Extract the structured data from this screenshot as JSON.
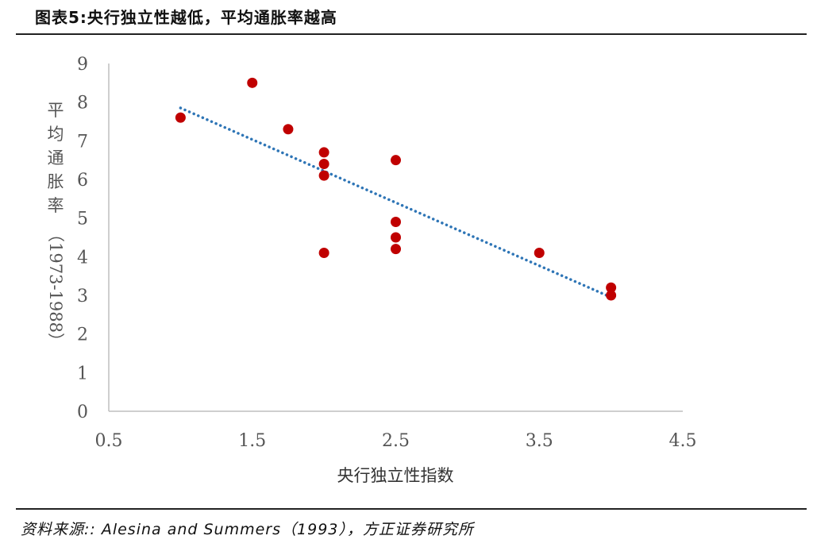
{
  "figure": {
    "title": "图表5:央行独立性越低，平均通胀率越高",
    "source": "资料来源:: Alesina and Summers（1993），方正证券研究所"
  },
  "colors": {
    "point": "#C00000",
    "trendline": "#2E75B6",
    "axis": "#BFBFBF",
    "rule": "#222222"
  },
  "chart_data": {
    "type": "scatter",
    "xlabel": "央行独立性指数",
    "ylabel": "平均通胀率（1973-1988）",
    "xlim": [
      0.5,
      4.5
    ],
    "ylim": [
      0,
      9
    ],
    "x_ticks": [
      "0.5",
      "1.5",
      "2.5",
      "3.5",
      "4.5"
    ],
    "y_ticks": [
      "0",
      "1",
      "2",
      "3",
      "4",
      "5",
      "6",
      "7",
      "8",
      "9"
    ],
    "grid": false,
    "legend": "none",
    "points": [
      {
        "x": 1.0,
        "y": 7.6
      },
      {
        "x": 1.5,
        "y": 8.5
      },
      {
        "x": 1.75,
        "y": 7.3
      },
      {
        "x": 2.0,
        "y": 6.7
      },
      {
        "x": 2.0,
        "y": 6.4
      },
      {
        "x": 2.0,
        "y": 6.1
      },
      {
        "x": 2.0,
        "y": 4.1
      },
      {
        "x": 2.5,
        "y": 6.5
      },
      {
        "x": 2.5,
        "y": 4.9
      },
      {
        "x": 2.5,
        "y": 4.5
      },
      {
        "x": 2.5,
        "y": 4.2
      },
      {
        "x": 3.5,
        "y": 4.1
      },
      {
        "x": 4.0,
        "y": 3.2
      },
      {
        "x": 4.0,
        "y": 3.0
      }
    ],
    "trendline": {
      "style": "dotted",
      "x": [
        1.0,
        4.0
      ],
      "y": [
        7.85,
        2.95
      ]
    }
  }
}
